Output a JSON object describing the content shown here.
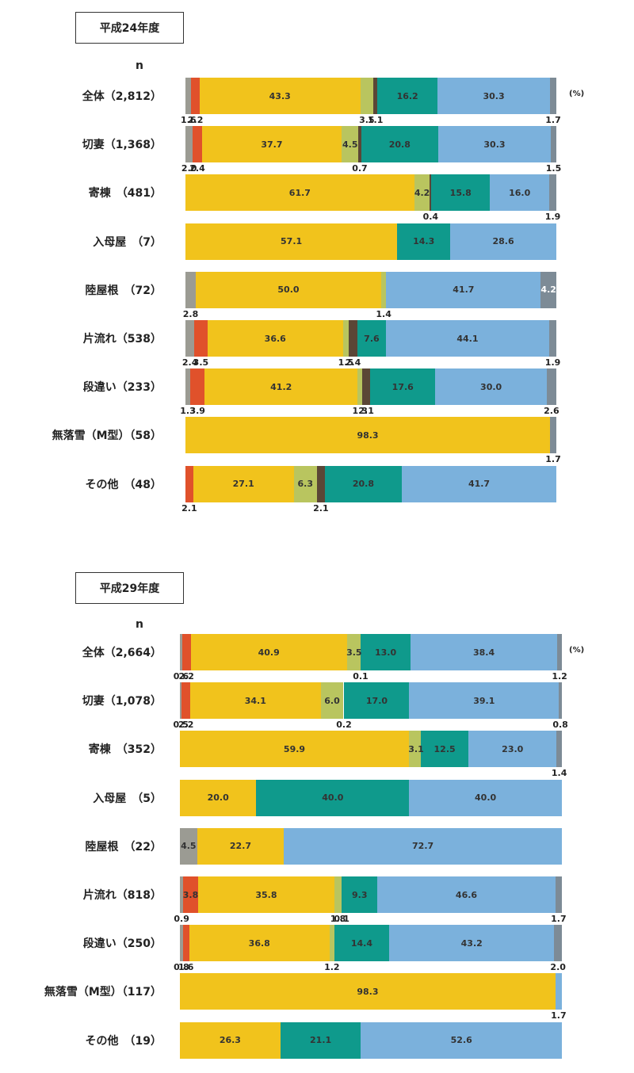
{
  "colors": [
    "#9b9b93",
    "#e0512b",
    "#f1c31c",
    "#b9c55f",
    "#5b4636",
    "#0f9a8c",
    "#7bb1dc",
    "#7d8b96"
  ],
  "chart_data": [
    {
      "type": "bar",
      "orientation": "horizontal-stacked-100",
      "title": "平成24年度",
      "n_label": "n",
      "unit_label": "(%)",
      "rows": [
        {
          "label": "全体（2,812）",
          "values": [
            1.6,
            2.2,
            43.3,
            3.5,
            1.1,
            16.2,
            30.3,
            1.7
          ],
          "inside": [
            2,
            5,
            6
          ],
          "below": [
            0,
            1,
            3,
            4,
            7
          ]
        },
        {
          "label": "切妻（1,368）",
          "values": [
            2.0,
            2.4,
            37.7,
            4.5,
            0.7,
            20.8,
            30.3,
            1.5
          ],
          "inside": [
            2,
            3,
            5,
            6
          ],
          "below": [
            0,
            1,
            4,
            7
          ]
        },
        {
          "label": "寄棟　（481）",
          "values": [
            0,
            0,
            61.7,
            4.2,
            0.4,
            15.8,
            16.0,
            1.9
          ],
          "inside": [
            2,
            3,
            5,
            6
          ],
          "below": [
            4,
            7
          ]
        },
        {
          "label": "入母屋　（7）",
          "values": [
            0,
            0,
            57.1,
            0,
            0,
            14.3,
            28.6,
            0
          ],
          "inside": [
            2,
            5,
            6
          ],
          "below": []
        },
        {
          "label": "陸屋根　（72）",
          "values": [
            2.8,
            0,
            50.0,
            1.4,
            0,
            0,
            41.7,
            4.2
          ],
          "inside": [
            2,
            6,
            7
          ],
          "below": [
            0,
            3
          ]
        },
        {
          "label": "片流れ（538）",
          "values": [
            2.4,
            3.5,
            36.6,
            1.5,
            2.4,
            7.6,
            44.1,
            1.9
          ],
          "inside": [
            2,
            5,
            6
          ],
          "below": [
            0,
            1,
            3,
            4,
            7
          ]
        },
        {
          "label": "段違い（233）",
          "values": [
            1.3,
            3.9,
            41.2,
            1.3,
            2.1,
            17.6,
            30.0,
            2.6
          ],
          "inside": [
            2,
            5,
            6
          ],
          "below": [
            0,
            1,
            3,
            4,
            7
          ]
        },
        {
          "label": "無落雪（M型）（58）",
          "values": [
            0,
            0,
            98.3,
            0,
            0,
            0,
            0,
            1.7
          ],
          "inside": [
            2
          ],
          "below": [
            7
          ]
        },
        {
          "label": "その他　（48）",
          "values": [
            0,
            2.1,
            27.1,
            6.3,
            2.1,
            20.8,
            41.7,
            0
          ],
          "inside": [
            2,
            3,
            5,
            6
          ],
          "below": [
            1,
            4
          ]
        }
      ]
    },
    {
      "type": "bar",
      "orientation": "horizontal-stacked-100",
      "title": "平成29年度",
      "n_label": "n",
      "unit_label": "(%)",
      "rows": [
        {
          "label": "全体（2,664）",
          "values": [
            0.6,
            2.2,
            40.9,
            3.5,
            0.1,
            13.0,
            38.4,
            1.2
          ],
          "inside": [
            2,
            3,
            5,
            6
          ],
          "below": [
            0,
            1,
            4,
            7
          ]
        },
        {
          "label": "切妻（1,078）",
          "values": [
            0.5,
            2.2,
            34.1,
            6.0,
            0.2,
            17.0,
            39.1,
            0.8
          ],
          "inside": [
            2,
            3,
            5,
            6
          ],
          "below": [
            0,
            1,
            4,
            7
          ]
        },
        {
          "label": "寄棟　（352）",
          "values": [
            0,
            0,
            59.9,
            3.1,
            0,
            12.5,
            23.0,
            1.4
          ],
          "inside": [
            2,
            3,
            5,
            6
          ],
          "below": [
            7
          ]
        },
        {
          "label": "入母屋　（5）",
          "values": [
            0,
            0,
            20.0,
            0,
            0,
            40.0,
            40.0,
            0
          ],
          "inside": [
            2,
            5,
            6
          ],
          "below": []
        },
        {
          "label": "陸屋根　（22）",
          "values": [
            4.5,
            0,
            22.7,
            0,
            0,
            0,
            72.7,
            0
          ],
          "inside": [
            0,
            2,
            6
          ],
          "below": []
        },
        {
          "label": "片流れ（818）",
          "values": [
            0.9,
            3.8,
            35.8,
            1.8,
            0.1,
            9.3,
            46.6,
            1.7
          ],
          "inside": [
            1,
            2,
            5,
            6
          ],
          "below": [
            0,
            3,
            4,
            7
          ]
        },
        {
          "label": "段違い（250）",
          "values": [
            0.8,
            1.6,
            36.8,
            1.2,
            0,
            14.4,
            43.2,
            2.0
          ],
          "inside": [
            2,
            5,
            6
          ],
          "below": [
            0,
            1,
            3,
            7
          ]
        },
        {
          "label": "無落雪（M型）（117）",
          "values": [
            0,
            0,
            98.3,
            0,
            0,
            0,
            1.7,
            0
          ],
          "inside": [
            2
          ],
          "below": [
            6
          ]
        },
        {
          "label": "その他　（19）",
          "values": [
            0,
            0,
            26.3,
            0,
            0,
            21.1,
            52.6,
            0
          ],
          "inside": [
            2,
            5,
            6
          ],
          "below": []
        }
      ]
    }
  ]
}
